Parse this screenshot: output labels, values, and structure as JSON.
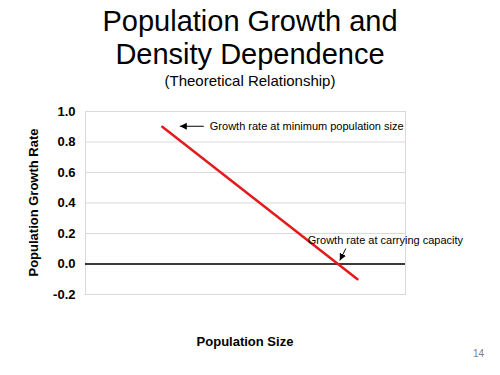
{
  "chart_data": {
    "type": "line",
    "title": "Population Growth and Density Dependence",
    "subtitle": "(Theoretical Relationship)",
    "x_label": "Population Size",
    "y_label": "Population Growth Rate",
    "x": [
      2.4,
      8.5
    ],
    "values": [
      0.9,
      -0.1
    ],
    "color": "#e41a1c",
    "xlim": [
      0,
      10
    ],
    "xticks": [],
    "ylim": [
      -0.2,
      1.0
    ],
    "yticks": [
      -0.2,
      {
        "value": 0,
        "label": "0.0"
      },
      0.2,
      0.4,
      0.6,
      0.8,
      {
        "value": 1,
        "label": "1.0"
      }
    ],
    "grid": true,
    "tick_labels": "y",
    "annotations": [
      {
        "text": "Growth rate at minimum population size",
        "x": 2.4,
        "y": 0.9
      },
      {
        "text": "Growth rate at carrying capacity",
        "x": 7.9,
        "y": 0
      }
    ],
    "slide_number": "14"
  }
}
